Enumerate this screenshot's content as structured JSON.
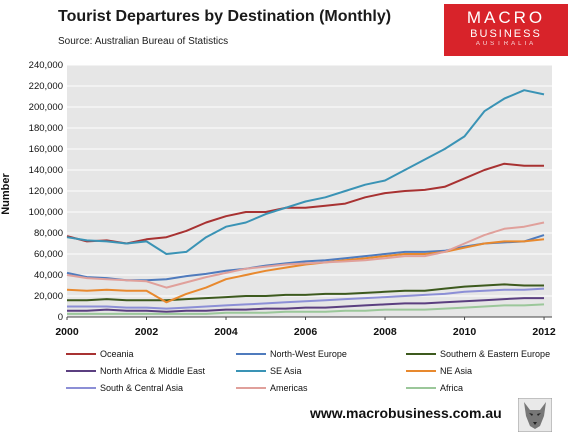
{
  "chart_data": {
    "type": "line",
    "title": "Tourist Departures by Destination (Monthly)",
    "subtitle": "Source: Australian Bureau of Statistics",
    "ylabel": "Number",
    "xlabel": "",
    "xlim": [
      2000,
      2012.2
    ],
    "ylim": [
      0,
      240000
    ],
    "x_ticks": [
      "2000",
      "2002",
      "2004",
      "2006",
      "2008",
      "2010",
      "2012"
    ],
    "y_ticks": [
      "0",
      "20,000",
      "40,000",
      "60,000",
      "80,000",
      "100,000",
      "120,000",
      "140,000",
      "160,000",
      "180,000",
      "200,000",
      "220,000",
      "240,000"
    ],
    "grid": true,
    "legend_position": "bottom",
    "x": [
      2000.0,
      2000.5,
      2001.0,
      2001.5,
      2002.0,
      2002.5,
      2003.0,
      2003.5,
      2004.0,
      2004.5,
      2005.0,
      2005.5,
      2006.0,
      2006.5,
      2007.0,
      2007.5,
      2008.0,
      2008.5,
      2009.0,
      2009.5,
      2010.0,
      2010.5,
      2011.0,
      2011.5,
      2012.0
    ],
    "series": [
      {
        "name": "Oceania",
        "color": "#a83232",
        "values": [
          77000,
          72000,
          73000,
          70000,
          74000,
          76000,
          82000,
          90000,
          96000,
          100000,
          100000,
          104000,
          104000,
          106000,
          108000,
          114000,
          118000,
          120000,
          121000,
          124000,
          132000,
          140000,
          146000,
          144000,
          144000
        ]
      },
      {
        "name": "North-West Europe",
        "color": "#4f7bbd",
        "values": [
          42000,
          38000,
          37000,
          35000,
          35000,
          36000,
          39000,
          41000,
          44000,
          46000,
          49000,
          51000,
          53000,
          54000,
          56000,
          58000,
          60000,
          62000,
          62000,
          63000,
          67000,
          70000,
          71000,
          72000,
          78000
        ]
      },
      {
        "name": "Southern & Eastern Europe",
        "color": "#3d5a1e",
        "values": [
          16000,
          16000,
          17000,
          16000,
          16000,
          16000,
          17000,
          18000,
          19000,
          20000,
          20000,
          21000,
          21000,
          22000,
          22000,
          23000,
          24000,
          25000,
          25000,
          27000,
          29000,
          30000,
          31000,
          30000,
          30000
        ]
      },
      {
        "name": "North Africa & Middle East",
        "color": "#5b3f80",
        "values": [
          6000,
          6000,
          7000,
          6000,
          6000,
          5000,
          6000,
          6000,
          7000,
          7000,
          8000,
          8000,
          9000,
          9000,
          10000,
          11000,
          12000,
          13000,
          13000,
          14000,
          15000,
          16000,
          17000,
          18000,
          18000
        ]
      },
      {
        "name": "SE Asia",
        "color": "#3a93b5",
        "values": [
          76000,
          73000,
          72000,
          70000,
          72000,
          60000,
          62000,
          76000,
          86000,
          90000,
          98000,
          104000,
          110000,
          114000,
          120000,
          126000,
          130000,
          140000,
          150000,
          160000,
          172000,
          196000,
          208000,
          216000,
          212000
        ]
      },
      {
        "name": "NE Asia",
        "color": "#e8892e",
        "values": [
          26000,
          25000,
          26000,
          25000,
          25000,
          14000,
          22000,
          28000,
          36000,
          40000,
          44000,
          47000,
          50000,
          52000,
          54000,
          56000,
          58000,
          60000,
          60000,
          62000,
          66000,
          70000,
          72000,
          72000,
          74000
        ]
      },
      {
        "name": "South & Central Asia",
        "color": "#8c8fd6",
        "values": [
          10000,
          10000,
          10000,
          9000,
          9000,
          8000,
          9000,
          10000,
          11000,
          12000,
          13000,
          14000,
          15000,
          16000,
          17000,
          18000,
          19000,
          20000,
          21000,
          22000,
          24000,
          25000,
          26000,
          26000,
          27000
        ]
      },
      {
        "name": "Americas",
        "color": "#e0a09b",
        "values": [
          40000,
          37000,
          36000,
          35000,
          34000,
          28000,
          33000,
          38000,
          42000,
          46000,
          48000,
          50000,
          51000,
          52000,
          53000,
          54000,
          56000,
          58000,
          58000,
          62000,
          70000,
          78000,
          84000,
          86000,
          90000
        ]
      },
      {
        "name": "Africa",
        "color": "#9bc79a",
        "values": [
          3000,
          3000,
          3000,
          3000,
          3000,
          3000,
          3000,
          3000,
          4000,
          4000,
          4000,
          5000,
          5000,
          5000,
          6000,
          6000,
          7000,
          7000,
          7000,
          8000,
          9000,
          10000,
          11000,
          11000,
          12000
        ]
      }
    ]
  },
  "logo": {
    "line1": "MACRO",
    "line2": "BUSINESS",
    "line3": "AUSTRALIA"
  },
  "website": "www.macrobusiness.com.au",
  "wolf_icon": "wolf-emblem-icon"
}
